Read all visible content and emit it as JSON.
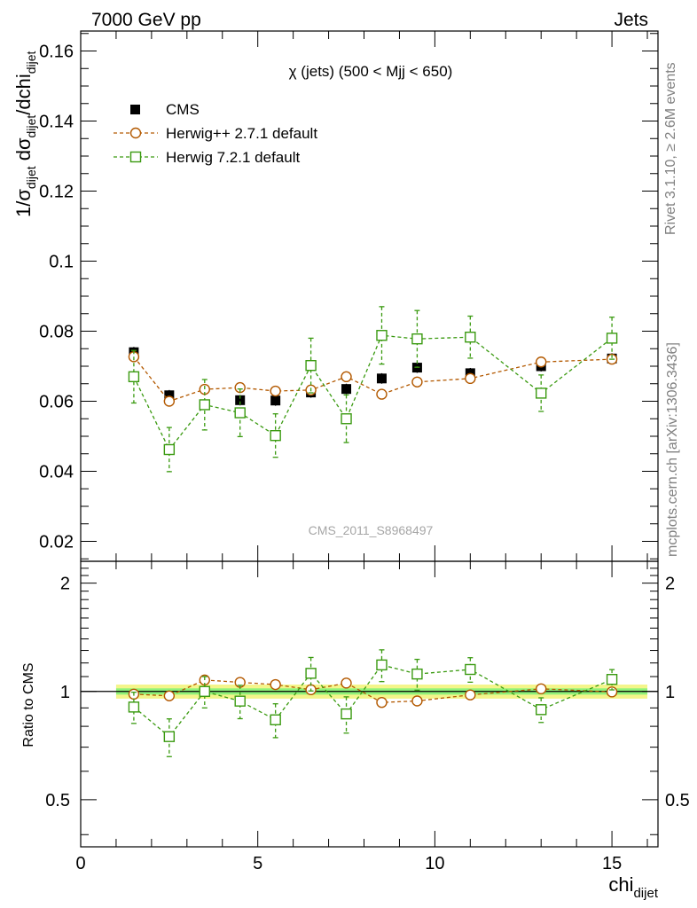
{
  "header": {
    "left": "7000 GeV pp",
    "right": "Jets"
  },
  "side_labels": {
    "rivet": "Rivet 3.1.10, ≥ 2.6M events",
    "mcplots": "mcplots.cern.ch [arXiv:1306.3436]"
  },
  "watermark": "CMS_2011_S8968497",
  "colors": {
    "cms": "#000000",
    "herwigpp": "#b35900",
    "herwig7": "#3a9a10",
    "band_inner": "#8ff27a",
    "band_outer": "#f4f58a"
  },
  "chart_data": [
    {
      "type": "scatter",
      "title": "χ (jets) (500 < Mjj <  650)",
      "ylabel": "1/σ_dijet dσ_dijet/dchi_dijet",
      "xlim": [
        0,
        16.3
      ],
      "ylim": [
        0.0143,
        0.1657
      ],
      "yticks": [
        "0.02",
        "0.04",
        "0.06",
        "0.08",
        "0.1",
        "0.12",
        "0.14",
        "0.16"
      ],
      "legend_position": "top-left",
      "x": [
        1.5,
        2.5,
        3.5,
        4.5,
        5.5,
        6.5,
        7.5,
        8.5,
        9.5,
        11.0,
        13.0,
        15.0
      ],
      "series": [
        {
          "name": "CMS",
          "marker": "filled-square",
          "values": [
            0.074,
            0.0617,
            0.059,
            0.0603,
            0.0602,
            0.0625,
            0.0635,
            0.0665,
            0.0696,
            0.068,
            0.07,
            0.0722
          ],
          "errors": [
            0.0015,
            0.0015,
            0.0015,
            0.0015,
            0.0015,
            0.0015,
            0.0015,
            0.0015,
            0.0015,
            0.0015,
            0.0015,
            0.0015
          ]
        },
        {
          "name": "Herwig++ 2.7.1 default",
          "marker": "open-circle",
          "values": [
            0.0727,
            0.06,
            0.0634,
            0.0639,
            0.0629,
            0.0632,
            0.067,
            0.062,
            0.0655,
            0.0665,
            0.0712,
            0.072
          ],
          "errors": [
            0.001,
            0.001,
            0.001,
            0.001,
            0.001,
            0.001,
            0.001,
            0.001,
            0.001,
            0.001,
            0.001,
            0.001
          ]
        },
        {
          "name": "Herwig 7.2.1 default",
          "marker": "open-square",
          "values": [
            0.067,
            0.0462,
            0.059,
            0.0567,
            0.0502,
            0.0702,
            0.055,
            0.0788,
            0.0778,
            0.0783,
            0.0623,
            0.078
          ],
          "errors": [
            0.0075,
            0.0063,
            0.0072,
            0.0068,
            0.0062,
            0.0078,
            0.0068,
            0.0082,
            0.0081,
            0.006,
            0.0052,
            0.006
          ]
        }
      ]
    },
    {
      "type": "scatter",
      "xlabel": "chi_dijet",
      "ylabel": "Ratio to CMS",
      "xlim": [
        0,
        16.3
      ],
      "ylim": [
        0.37,
        2.3
      ],
      "log_y": true,
      "xticks": [
        "0",
        "5",
        "10",
        "15"
      ],
      "yticks": [
        "0.5",
        "1",
        "2"
      ],
      "band": {
        "x_range": [
          1.0,
          16.0
        ],
        "inner": 0.02,
        "outer": 0.045
      },
      "x": [
        1.5,
        2.5,
        3.5,
        4.5,
        5.5,
        6.5,
        7.5,
        8.5,
        9.5,
        11.0,
        13.0,
        15.0
      ],
      "series": [
        {
          "name": "Herwig++ 2.7.1 default",
          "marker": "open-circle",
          "values": [
            0.983,
            0.972,
            1.076,
            1.06,
            1.045,
            1.011,
            1.055,
            0.932,
            0.941,
            0.978,
            1.017,
            0.997
          ],
          "errors": [
            0.015,
            0.015,
            0.015,
            0.015,
            0.015,
            0.015,
            0.015,
            0.015,
            0.015,
            0.015,
            0.015,
            0.015
          ]
        },
        {
          "name": "Herwig 7.2.1 default",
          "marker": "open-square",
          "values": [
            0.905,
            0.749,
            1.0,
            0.94,
            0.834,
            1.123,
            0.866,
            1.185,
            1.118,
            1.151,
            0.89,
            1.08
          ],
          "errors": [
            0.09,
            0.09,
            0.1,
            0.1,
            0.09,
            0.12,
            0.1,
            0.12,
            0.11,
            0.09,
            0.07,
            0.07
          ]
        }
      ]
    }
  ]
}
